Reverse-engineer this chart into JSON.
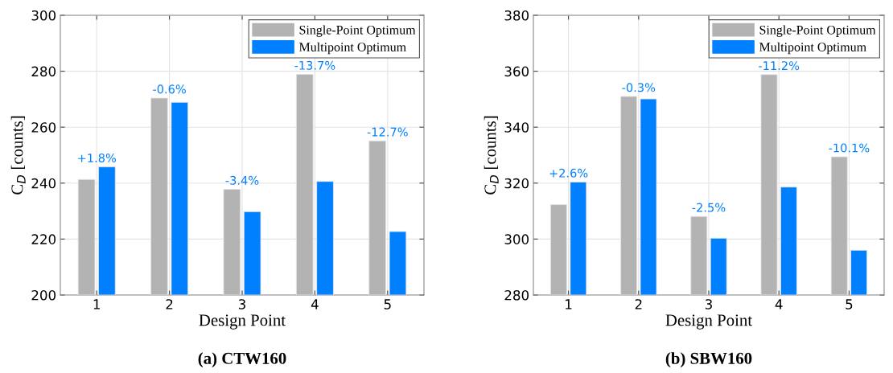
{
  "chart_data": [
    {
      "type": "bar",
      "title": "(a) CTW160",
      "xlabel": "Design Point",
      "ylabel": "C$_{D}$ [counts]",
      "categories": [
        "1",
        "2",
        "3",
        "4",
        "5"
      ],
      "series": [
        {
          "name": "Single-Point Optimum",
          "color": "#b3b3b3",
          "values": [
            241.3,
            270.4,
            237.8,
            278.9,
            255.1
          ]
        },
        {
          "name": "Multipoint Optimum",
          "color": "#0080ff",
          "values": [
            245.8,
            268.9,
            229.8,
            240.6,
            222.7
          ]
        }
      ],
      "ylim": [
        200,
        300
      ],
      "yticks": [
        200,
        220,
        240,
        260,
        280,
        300
      ],
      "grid": true,
      "legend": "top right",
      "annotations": [
        {
          "text": "+1.8%",
          "x": "1",
          "y": 245.8
        },
        {
          "text": "-0.6%",
          "x": "2",
          "y": 270.4
        },
        {
          "text": "-3.4%",
          "x": "3",
          "y": 237.8
        },
        {
          "text": "-13.7%",
          "x": "4",
          "y": 278.9
        },
        {
          "text": "-12.7%",
          "x": "5",
          "y": 255.1
        }
      ]
    },
    {
      "type": "bar",
      "title": "(b) SBW160",
      "xlabel": "Design Point",
      "ylabel": "C$_{D}$ [counts]",
      "categories": [
        "1",
        "2",
        "3",
        "4",
        "5"
      ],
      "series": [
        {
          "name": "Single-Point Optimum",
          "color": "#b3b3b3",
          "values": [
            312.3,
            351.0,
            308.1,
            358.8,
            329.4
          ]
        },
        {
          "name": "Multipoint Optimum",
          "color": "#0080ff",
          "values": [
            320.4,
            350.1,
            300.3,
            318.6,
            296.0
          ]
        }
      ],
      "ylim": [
        280,
        380
      ],
      "yticks": [
        280,
        300,
        320,
        340,
        360,
        380
      ],
      "grid": true,
      "legend": "top right",
      "annotations": [
        {
          "text": "+2.6%",
          "x": "1",
          "y": 320.4
        },
        {
          "text": "-0.3%",
          "x": "2",
          "y": 351.0
        },
        {
          "text": "-2.5%",
          "x": "3",
          "y": 308.1
        },
        {
          "text": "-11.2%",
          "x": "4",
          "y": 358.8
        },
        {
          "text": "-10.1%",
          "x": "5",
          "y": 329.4
        }
      ]
    }
  ]
}
